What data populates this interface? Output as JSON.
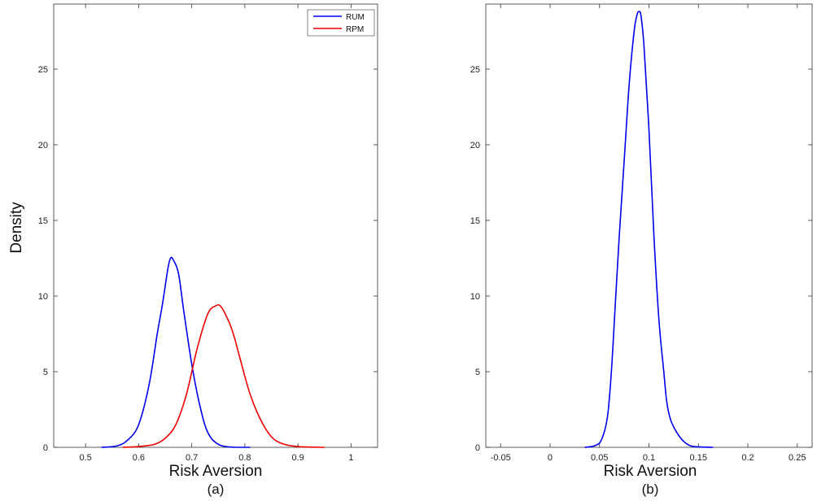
{
  "chart_data": [
    {
      "type": "line",
      "panel_label": "(a)",
      "xlabel": "Risk Aversion",
      "ylabel": "Density",
      "xlim": [
        0.44,
        1.05
      ],
      "ylim": [
        0,
        29.3
      ],
      "xticks": [
        0.5,
        0.6,
        0.7,
        0.8,
        0.9,
        1.0
      ],
      "xtick_labels": [
        "0.5",
        "0.6",
        "0.7",
        "0.8",
        "0.9",
        "1"
      ],
      "yticks": [
        0,
        5,
        10,
        15,
        20,
        25
      ],
      "ytick_labels": [
        "0",
        "5",
        "10",
        "15",
        "20",
        "25"
      ],
      "grid": false,
      "legend": "top-right",
      "series": [
        {
          "name": "RUM",
          "color": "#0000ee",
          "x": [
            0.53,
            0.56,
            0.58,
            0.6,
            0.62,
            0.635,
            0.645,
            0.655,
            0.66,
            0.665,
            0.675,
            0.685,
            0.7,
            0.715,
            0.73,
            0.75,
            0.78,
            0.81
          ],
          "y": [
            0.0,
            0.1,
            0.5,
            1.5,
            4.2,
            7.5,
            9.5,
            11.8,
            12.5,
            12.4,
            11.5,
            9.0,
            5.5,
            2.8,
            1.0,
            0.2,
            0.0,
            0.0
          ]
        },
        {
          "name": "RPM",
          "color": "#ee0000",
          "x": [
            0.57,
            0.6,
            0.63,
            0.65,
            0.67,
            0.69,
            0.71,
            0.73,
            0.745,
            0.755,
            0.77,
            0.78,
            0.79,
            0.81,
            0.83,
            0.85,
            0.87,
            0.9,
            0.95
          ],
          "y": [
            0.0,
            0.05,
            0.2,
            0.6,
            1.5,
            3.5,
            6.5,
            8.8,
            9.35,
            9.3,
            8.3,
            7.3,
            6.0,
            3.5,
            1.8,
            0.7,
            0.25,
            0.05,
            0.0
          ]
        }
      ]
    },
    {
      "type": "line",
      "panel_label": "(b)",
      "xlabel": "Risk Aversion",
      "ylabel": "",
      "xlim": [
        -0.065,
        0.265
      ],
      "ylim": [
        0,
        29.3
      ],
      "xticks": [
        -0.05,
        0,
        0.05,
        0.1,
        0.15,
        0.2,
        0.25
      ],
      "xtick_labels": [
        "-0.05",
        "0",
        "0.05",
        "0.1",
        "0.15",
        "0.2",
        "0.25"
      ],
      "yticks": [
        0,
        5,
        10,
        15,
        20,
        25
      ],
      "ytick_labels": [
        "0",
        "5",
        "10",
        "15",
        "20",
        "25"
      ],
      "grid": false,
      "series": [
        {
          "color": "#0000ee",
          "x": [
            0.035,
            0.045,
            0.052,
            0.058,
            0.062,
            0.066,
            0.07,
            0.075,
            0.08,
            0.085,
            0.088,
            0.09,
            0.092,
            0.095,
            0.1,
            0.105,
            0.11,
            0.115,
            0.118,
            0.122,
            0.128,
            0.135,
            0.142,
            0.15,
            0.165
          ],
          "y": [
            0.0,
            0.1,
            0.5,
            2.0,
            5.0,
            9.5,
            14.0,
            19.0,
            24.0,
            27.5,
            28.6,
            28.8,
            28.5,
            26.5,
            21.0,
            14.0,
            8.5,
            5.0,
            3.0,
            1.8,
            1.0,
            0.4,
            0.1,
            0.03,
            0.0
          ]
        }
      ]
    }
  ]
}
